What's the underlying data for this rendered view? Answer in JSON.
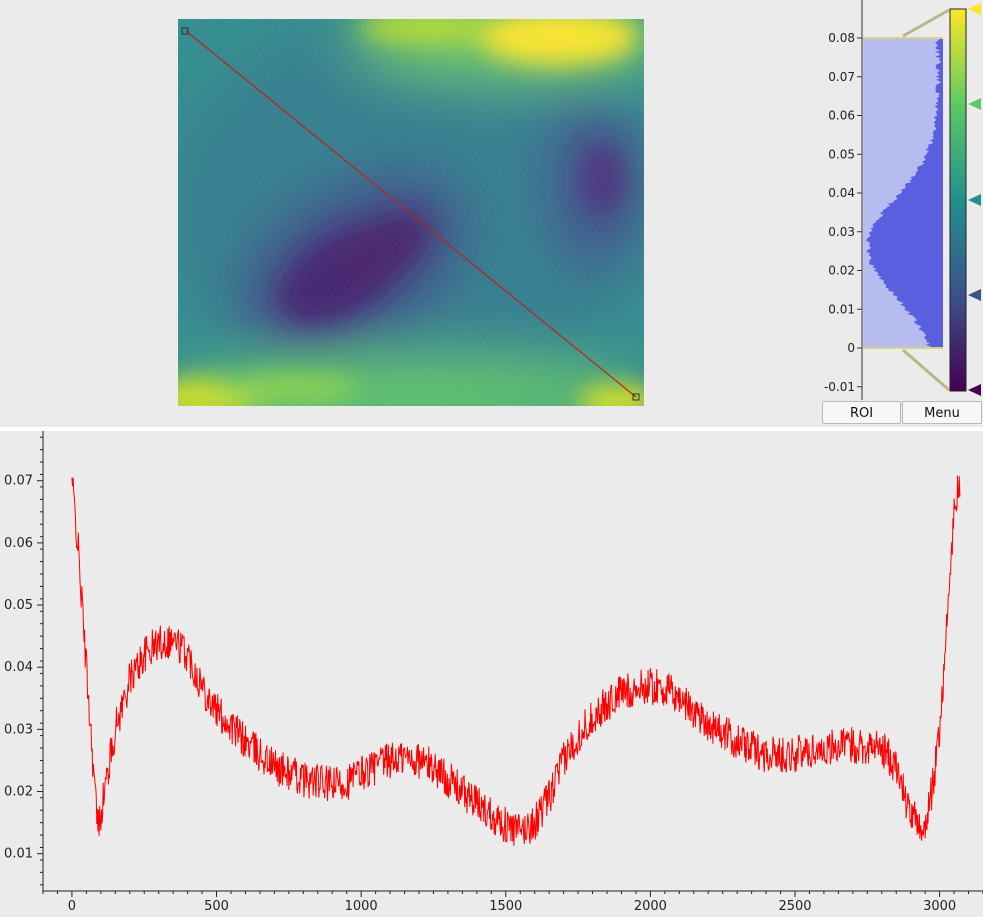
{
  "buttons": {
    "roi_label": "ROI",
    "menu_label": "Menu"
  },
  "colors": {
    "profile_line": "#ff0000",
    "histogram_fill": "#5a5fe0",
    "histogram_region": "#b7bcf0",
    "level_line": "#d6d28a",
    "colormap_stops": [
      "#440154",
      "#3b528b",
      "#21908d",
      "#5dc963",
      "#fde725"
    ]
  },
  "histogram": {
    "ticks": [
      "0.08",
      "0.07",
      "0.06",
      "0.05",
      "0.04",
      "0.03",
      "0.02",
      "0.01",
      "0",
      "-0.01"
    ],
    "level_min": 0,
    "level_max": 0.08,
    "colormap_range": [
      -0.01,
      0.087
    ]
  },
  "chart_data": {
    "type": "line",
    "title": "",
    "xlabel": "",
    "ylabel": "",
    "x_ticks": [
      "0",
      "500",
      "1000",
      "1500",
      "2000",
      "2500",
      "3000"
    ],
    "y_ticks": [
      "0.07",
      "0.06",
      "0.05",
      "0.04",
      "0.03",
      "0.02",
      "0.01"
    ],
    "xlim": [
      -100,
      3150
    ],
    "ylim": [
      0.004,
      0.078
    ],
    "grid": false,
    "series": [
      {
        "keypoints": [
          [
            0,
            0.07
          ],
          [
            20,
            0.06
          ],
          [
            50,
            0.04
          ],
          [
            80,
            0.02
          ],
          [
            90,
            0.014
          ],
          [
            120,
            0.022
          ],
          [
            150,
            0.03
          ],
          [
            200,
            0.038
          ],
          [
            250,
            0.042
          ],
          [
            300,
            0.044
          ],
          [
            350,
            0.0445
          ],
          [
            400,
            0.042
          ],
          [
            450,
            0.037
          ],
          [
            500,
            0.033
          ],
          [
            600,
            0.028
          ],
          [
            700,
            0.024
          ],
          [
            800,
            0.022
          ],
          [
            900,
            0.021
          ],
          [
            950,
            0.0215
          ],
          [
            1000,
            0.023
          ],
          [
            1050,
            0.024
          ],
          [
            1100,
            0.025
          ],
          [
            1150,
            0.0255
          ],
          [
            1200,
            0.025
          ],
          [
            1250,
            0.024
          ],
          [
            1300,
            0.022
          ],
          [
            1350,
            0.02
          ],
          [
            1400,
            0.018
          ],
          [
            1450,
            0.0165
          ],
          [
            1500,
            0.0145
          ],
          [
            1550,
            0.0135
          ],
          [
            1600,
            0.015
          ],
          [
            1650,
            0.019
          ],
          [
            1700,
            0.025
          ],
          [
            1750,
            0.029
          ],
          [
            1800,
            0.032
          ],
          [
            1900,
            0.036
          ],
          [
            2000,
            0.037
          ],
          [
            2050,
            0.0365
          ],
          [
            2100,
            0.035
          ],
          [
            2200,
            0.031
          ],
          [
            2300,
            0.028
          ],
          [
            2400,
            0.026
          ],
          [
            2500,
            0.026
          ],
          [
            2600,
            0.027
          ],
          [
            2700,
            0.0275
          ],
          [
            2800,
            0.027
          ],
          [
            2850,
            0.024
          ],
          [
            2900,
            0.016
          ],
          [
            2950,
            0.014
          ],
          [
            2980,
            0.022
          ],
          [
            3000,
            0.03
          ],
          [
            3030,
            0.05
          ],
          [
            3050,
            0.065
          ],
          [
            3070,
            0.07
          ]
        ]
      }
    ]
  }
}
